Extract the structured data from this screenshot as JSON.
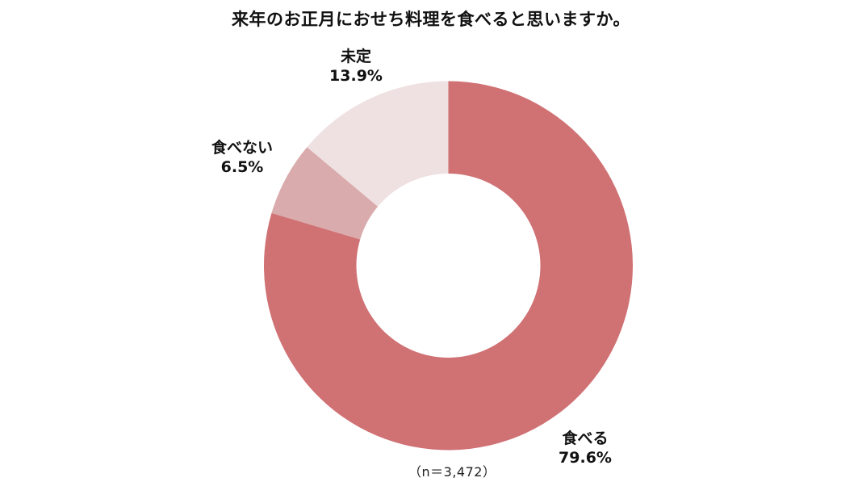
{
  "title": "来年のお正月におせち料理を食べると思いますか。",
  "note": "（n＝3,472）",
  "chart_data": {
    "type": "pie",
    "variant": "donut",
    "title": "来年のお正月におせち料理を食べると思いますか。",
    "categories": [
      "食べる",
      "食べない",
      "未定"
    ],
    "values": [
      79.6,
      6.5,
      13.9
    ],
    "unit": "%",
    "colors": [
      "#D07174",
      "#D9ABAC",
      "#EFE0E1"
    ],
    "start_angle": "12 o'clock, clockwise",
    "sample_size": 3472,
    "annotations": [
      "（n＝3,472）"
    ],
    "legend": "none (direct labels)"
  },
  "labels": [
    {
      "name": "食べる",
      "value": "79.6%"
    },
    {
      "name": "食べない",
      "value": "6.5%"
    },
    {
      "name": "未定",
      "value": "13.9%"
    }
  ]
}
